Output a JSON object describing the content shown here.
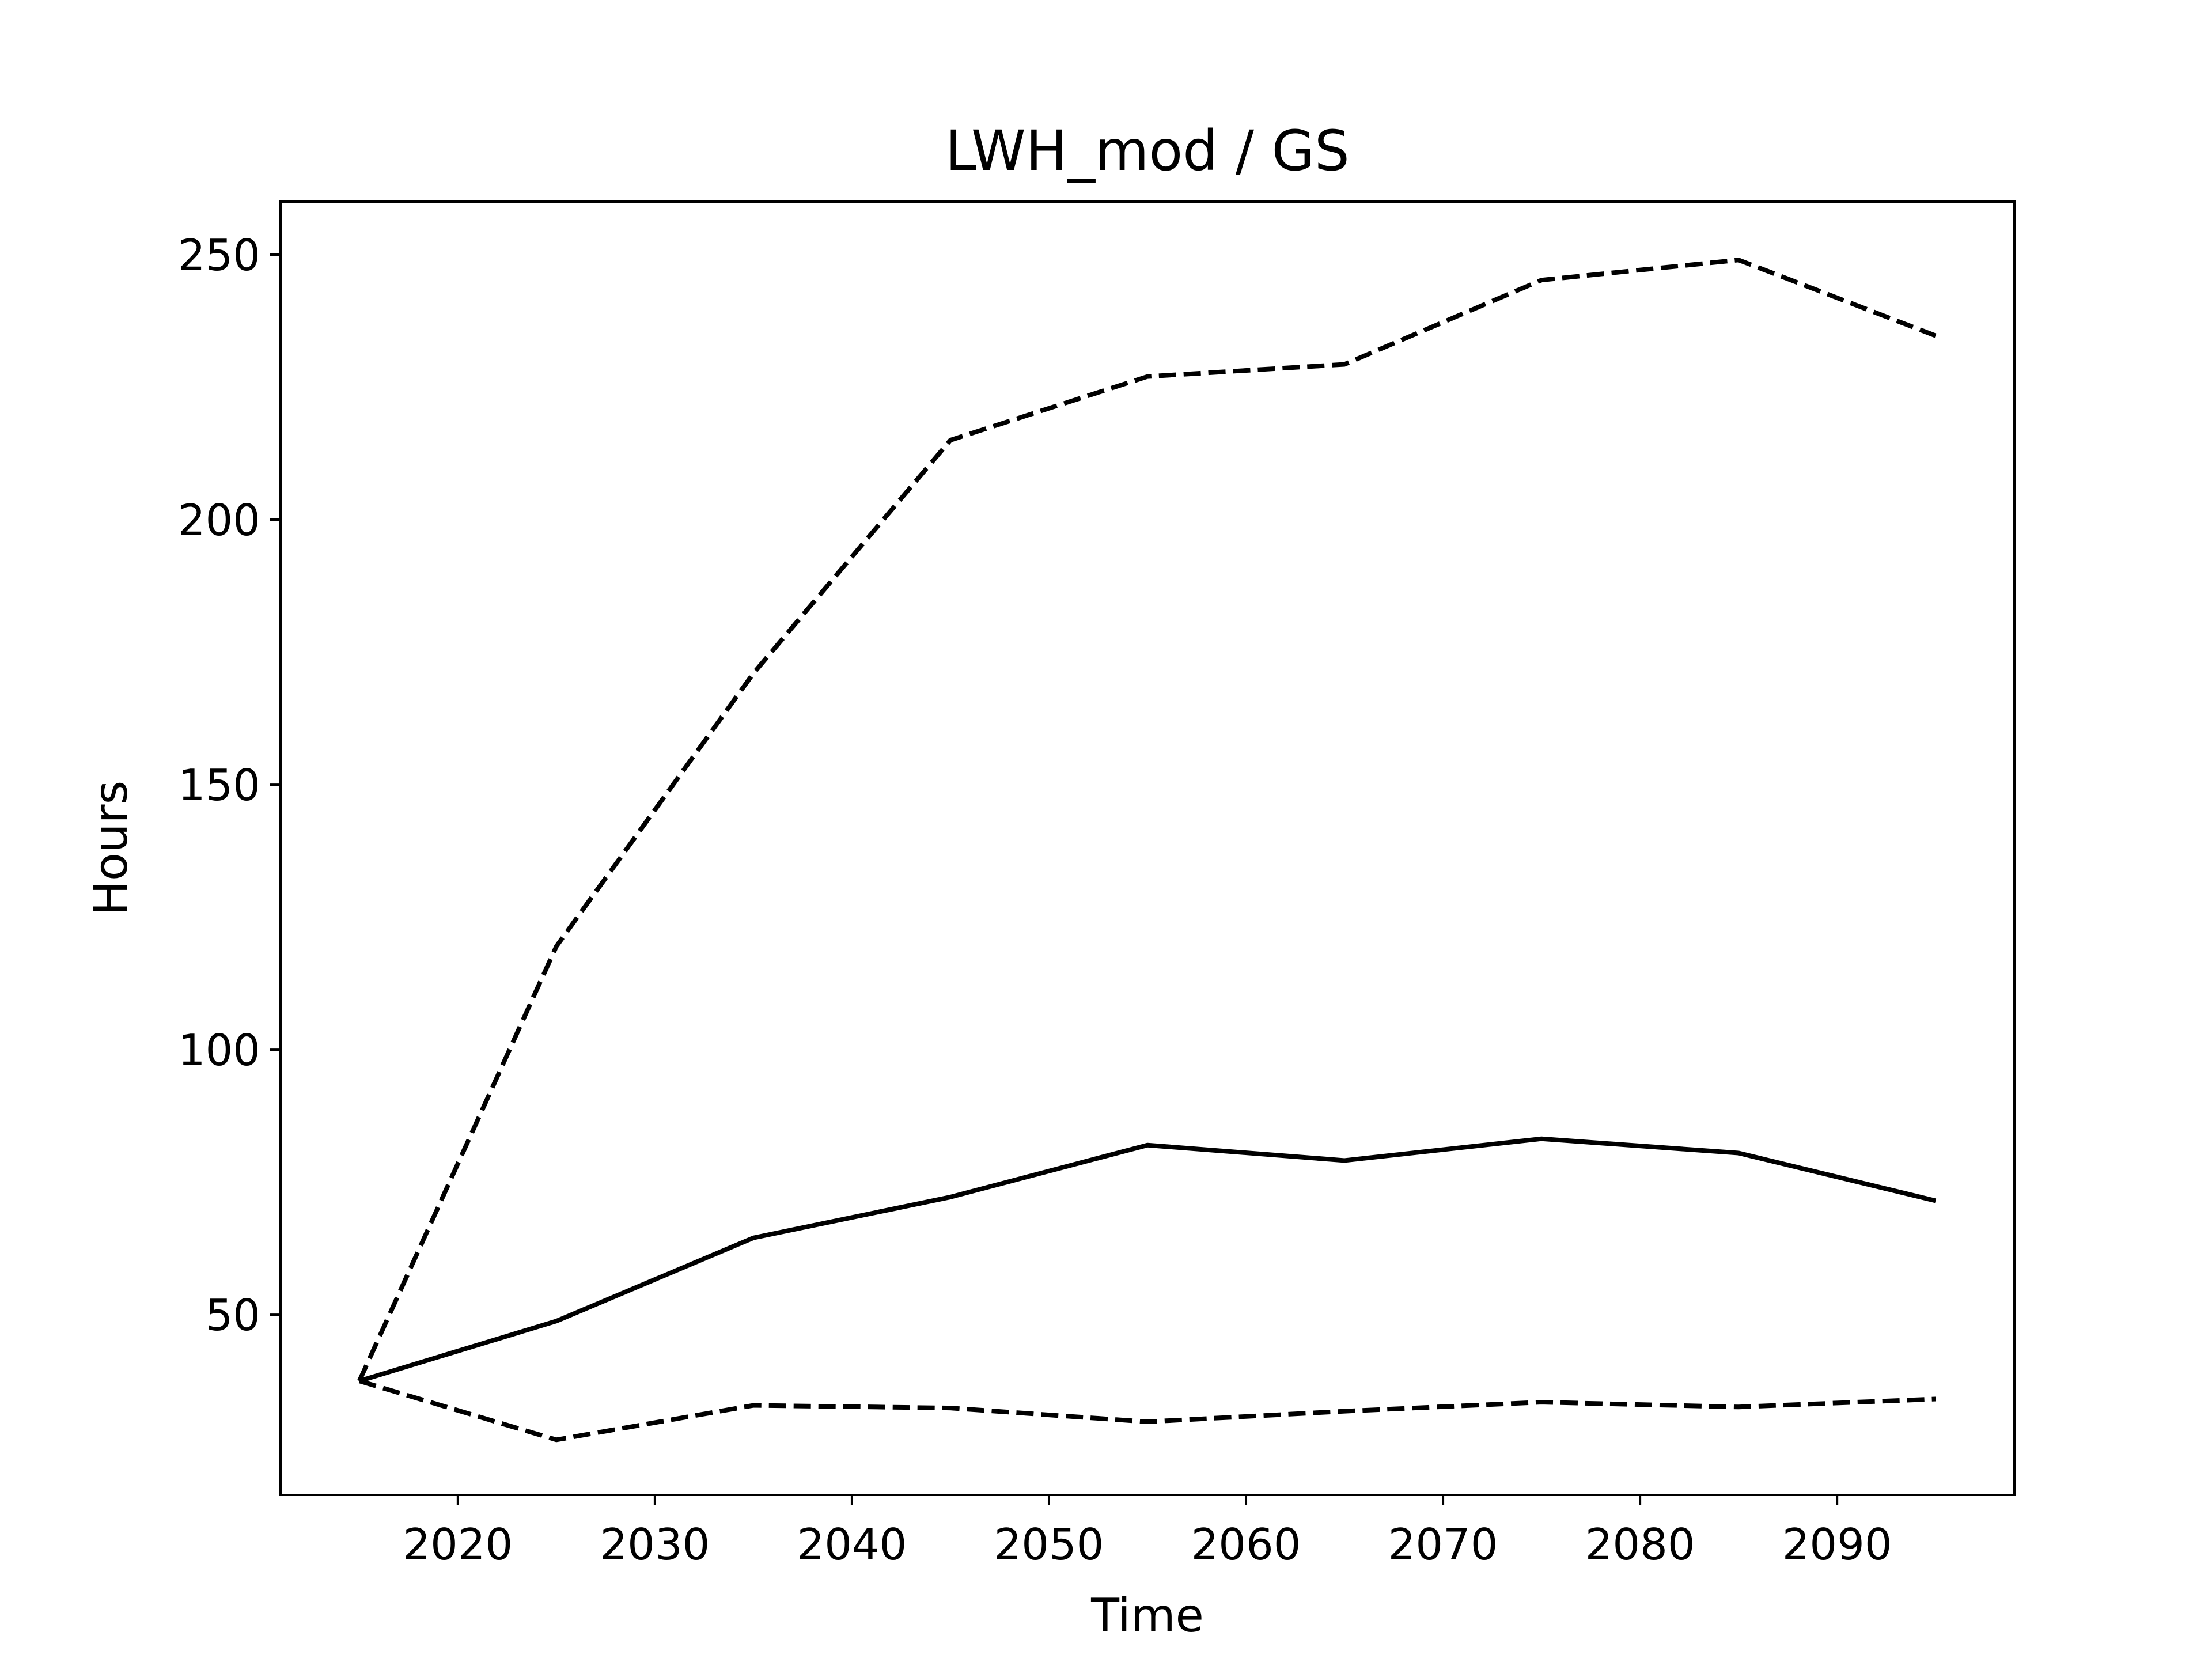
{
  "chart_data": {
    "type": "line",
    "title": "LWH_mod / GS",
    "xlabel": "Time",
    "ylabel": "Hours",
    "xlim": [
      2011,
      2099
    ],
    "ylim": [
      16,
      260
    ],
    "xticks": [
      2020,
      2030,
      2040,
      2050,
      2060,
      2070,
      2080,
      2090
    ],
    "yticks": [
      50,
      100,
      150,
      200,
      250
    ],
    "grid": false,
    "legend": "none",
    "x": [
      2015,
      2025,
      2035,
      2045,
      2055,
      2065,
      2075,
      2085,
      2095
    ],
    "series": [
      {
        "values": [
          37.5,
          48.8,
          64.5,
          72.2,
          82,
          79.1,
          83.2,
          80.5,
          71.5
        ],
        "line_style": "solid",
        "color": "#000000"
      },
      {
        "values": [
          37.5,
          119.5,
          171,
          215,
          227,
          229.3,
          245.2,
          249,
          234.7
        ],
        "line_style": "dashed",
        "color": "#000000"
      },
      {
        "values": [
          37.5,
          26.4,
          32.9,
          32.4,
          29.8,
          31.8,
          33.5,
          32.6,
          34.1
        ],
        "line_style": "dashed",
        "color": "#000000"
      }
    ]
  }
}
